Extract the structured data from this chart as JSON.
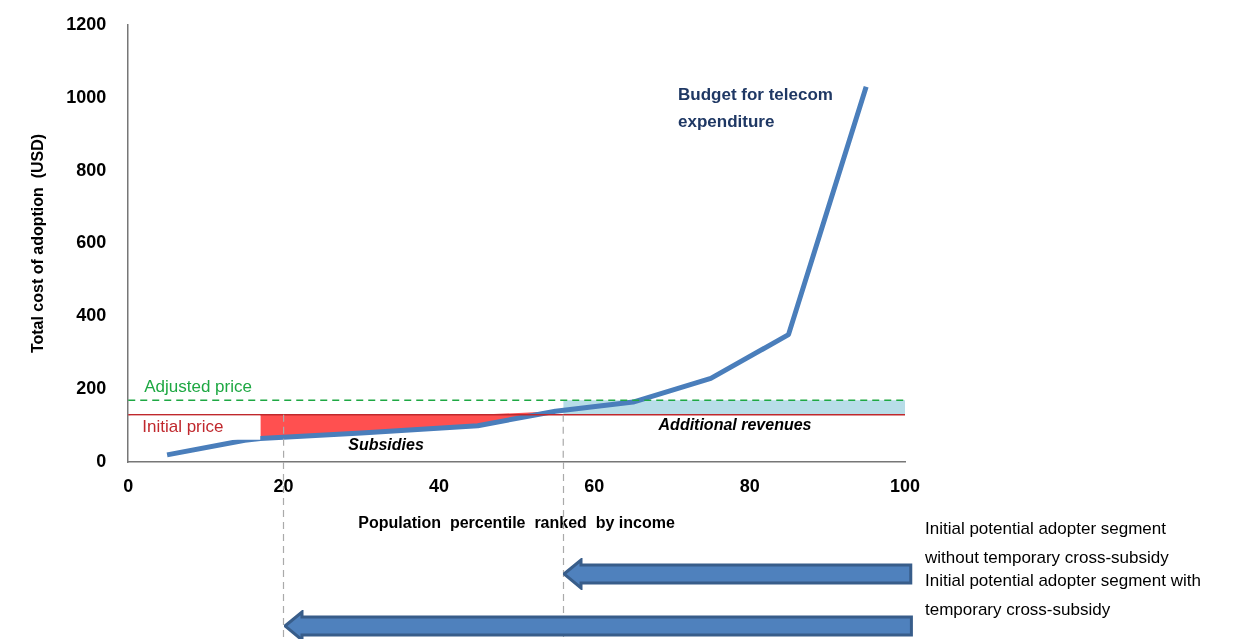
{
  "chart_data": {
    "type": "line",
    "xlabel": "Population  percentile  ranked  by income",
    "ylabel": "Total cost of adoption  (USD)",
    "xlim": [
      0,
      100
    ],
    "xticks": [
      0,
      20,
      40,
      60,
      80,
      100
    ],
    "ylim": [
      0,
      1200
    ],
    "yticks": [
      0,
      200,
      400,
      600,
      800,
      1000,
      1200
    ],
    "grid": false,
    "legend": false,
    "marker": "none",
    "series": [
      {
        "x": [
          17,
          30,
          45,
          55
        ],
        "values": [
          null,
          null,
          null,
          null
        ],
        "lower": [
          65,
          80,
          100,
          140
        ],
        "upper": [
          130,
          130,
          130,
          140
        ],
        "color": "#ff5050"
      },
      {
        "x": [
          56,
          100
        ],
        "values": [
          null,
          null
        ],
        "lower": [
          130,
          130
        ],
        "upper": [
          170,
          170
        ],
        "color": "#b7dde8"
      },
      {
        "x": [
          5,
          15,
          17,
          30,
          45,
          55,
          65,
          75,
          85,
          95
        ],
        "values": [
          20,
          60,
          65,
          80,
          100,
          140,
          165,
          230,
          350,
          1030
        ],
        "color": "#4a7ebb"
      }
    ],
    "ref_lines": [
      {
        "axis": "y",
        "value": 130,
        "label": "Initial price",
        "color": "#c0282d",
        "line_style": "solid"
      },
      {
        "axis": "y",
        "value": 170,
        "label": "Adjusted price",
        "color": "#1ea843",
        "line_style": "dashed"
      },
      {
        "axis": "x",
        "value": 20,
        "color": "#aaaaaa",
        "line_style": "dashed"
      },
      {
        "axis": "x",
        "value": 56,
        "color": "#aaaaaa",
        "line_style": "dashed"
      }
    ],
    "annotations": [
      "Budget for telecom expenditure",
      "Subsidies",
      "Additional revenues",
      "Initial potential adopter segment without temporary cross-subsidy",
      "Initial potential adopter segment with temporary cross-subsidy"
    ]
  }
}
